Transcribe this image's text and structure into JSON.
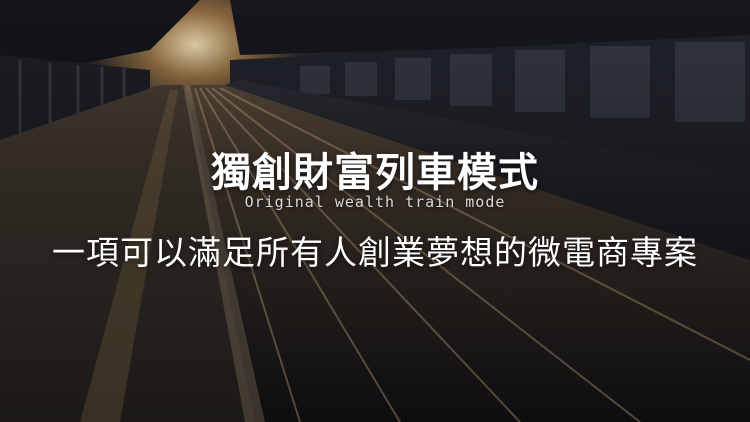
{
  "banner": {
    "title": "獨創財富列車模式",
    "subtitle_en": "Original wealth train mode",
    "tagline": "一項可以滿足所有人創業夢想的微電商專案"
  },
  "colors": {
    "text_primary": "#ffffff",
    "text_secondary": "#d9d9d9",
    "sunlight": "#ffe6b4"
  }
}
